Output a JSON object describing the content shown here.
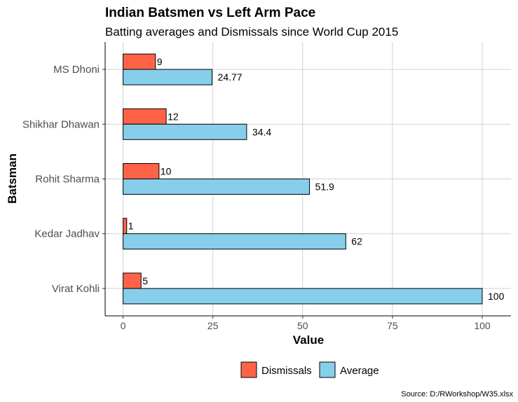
{
  "chart_data": {
    "type": "bar",
    "orientation": "horizontal",
    "title": "Indian Batsmen vs Left Arm Pace",
    "subtitle": "Batting averages and Dismissals since World Cup 2015",
    "xlabel": "Value",
    "ylabel": "Batsman",
    "caption": "Source: D:/RWorkshop/W35.xlsx",
    "categories": [
      "MS Dhoni",
      "Shikhar Dhawan",
      "Rohit Sharma",
      "Kedar Jadhav",
      "Virat Kohli"
    ],
    "series": [
      {
        "name": "Dismissals",
        "values": [
          9,
          12,
          10,
          1,
          5
        ],
        "labels": [
          "9",
          "12",
          "10",
          "1",
          "5"
        ],
        "color": "#FF6347"
      },
      {
        "name": "Average",
        "values": [
          24.77,
          34.4,
          51.9,
          62,
          100
        ],
        "labels": [
          "24.77",
          "34.4",
          "51.9",
          "62",
          "100"
        ],
        "color": "#87CEEB"
      }
    ],
    "xlim": [
      -5,
      108
    ],
    "xticks": [
      0,
      25,
      50,
      75,
      100
    ],
    "xtick_labels": [
      "0",
      "25",
      "50",
      "75",
      "100"
    ],
    "grid": true,
    "legend_position": "bottom"
  }
}
